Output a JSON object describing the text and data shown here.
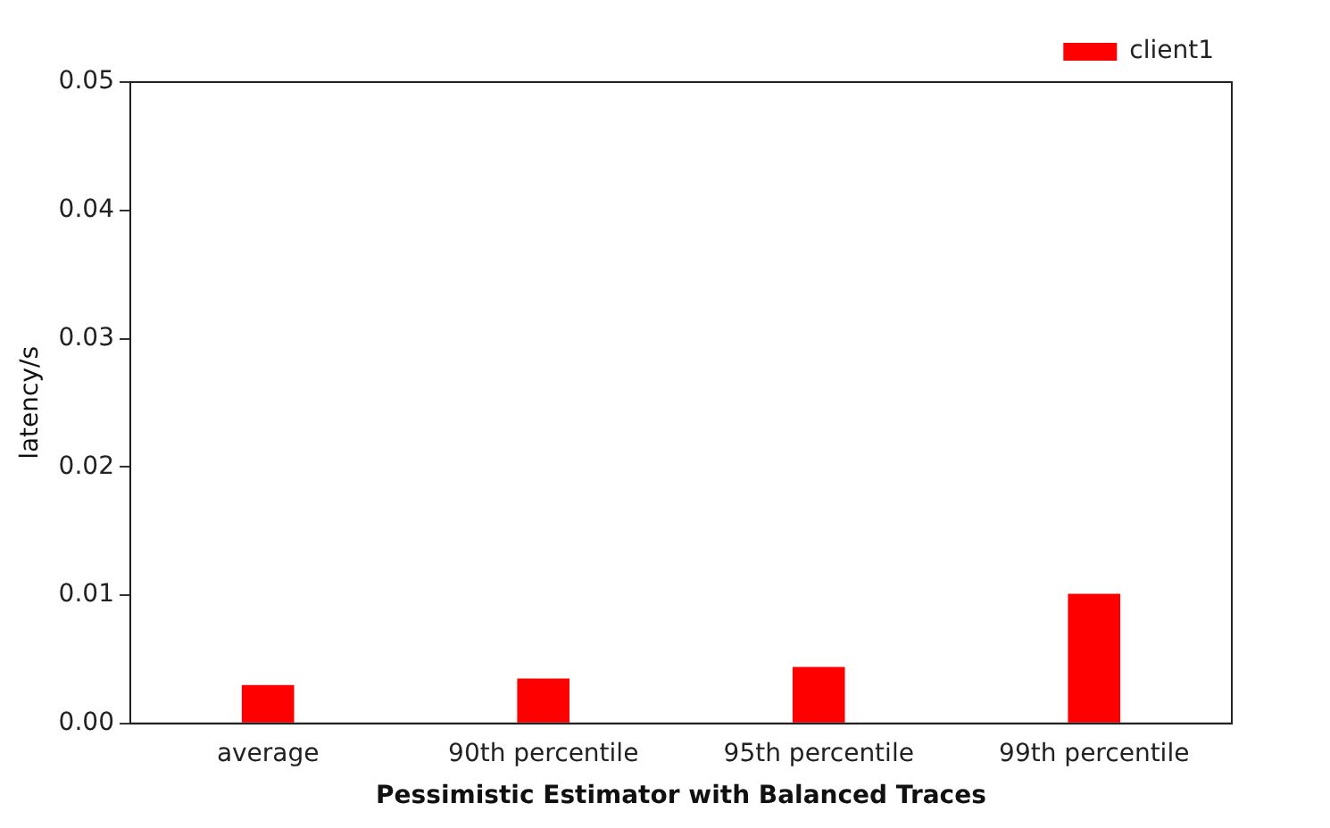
{
  "chart_data": {
    "type": "bar",
    "xlabel": "Pessimistic Estimator with Balanced Traces",
    "ylabel": "latency/s",
    "categories": [
      "average",
      "90th percentile",
      "95th percentile",
      "99th percentile"
    ],
    "series": [
      {
        "name": "client1",
        "color": "#ff0000",
        "values": [
          0.003,
          0.0035,
          0.0044,
          0.0101
        ]
      }
    ],
    "ylim": [
      0,
      0.05
    ],
    "yticks": [
      {
        "value": 0,
        "label": "0.00"
      },
      {
        "value": 0.01,
        "label": "0.01"
      },
      {
        "value": 0.02,
        "label": "0.02"
      },
      {
        "value": 0.03,
        "label": "0.03"
      },
      {
        "value": 0.04,
        "label": "0.04"
      },
      {
        "value": 0.05,
        "label": "0.05"
      }
    ],
    "grid": false,
    "legend": "top right"
  }
}
